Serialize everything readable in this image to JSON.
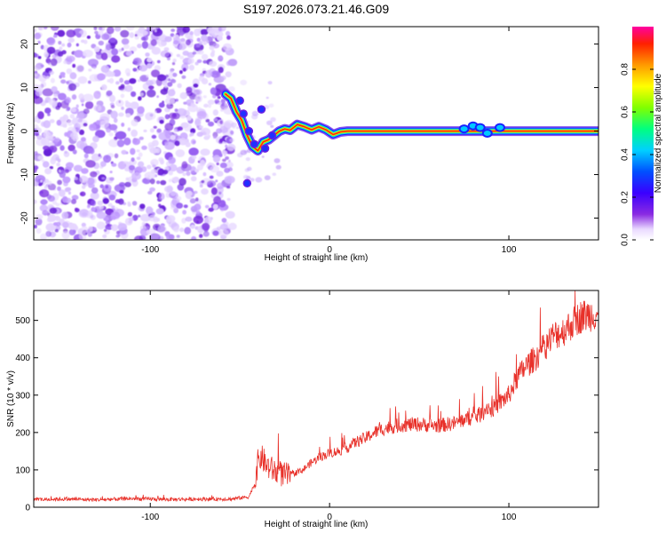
{
  "title": "S197.2026.073.21.46.G09",
  "chart_data": [
    {
      "type": "heatmap",
      "panel": "spectrogram",
      "xlabel": "Height of straight line (km)",
      "ylabel": "Frequency (Hz)",
      "xlim": [
        -165,
        150
      ],
      "ylim": [
        -25,
        24
      ],
      "xticks": [
        -100,
        0,
        100
      ],
      "yticks": [
        20,
        10,
        0,
        -10,
        -20
      ],
      "noise_region_x": [
        -165,
        -58
      ],
      "transition_region_x": [
        -58,
        -28
      ],
      "track": [
        {
          "x": -58,
          "y": 8.5
        },
        {
          "x": -55,
          "y": 7.5
        },
        {
          "x": -52,
          "y": 4.5
        },
        {
          "x": -49,
          "y": 2.5
        },
        {
          "x": -46,
          "y": -1
        },
        {
          "x": -43,
          "y": -3.5
        },
        {
          "x": -40,
          "y": -4.5
        },
        {
          "x": -37,
          "y": -2.5
        },
        {
          "x": -34,
          "y": -2
        },
        {
          "x": -31,
          "y": -1
        },
        {
          "x": -28,
          "y": 0
        },
        {
          "x": -25,
          "y": 0.5
        },
        {
          "x": -22,
          "y": 0.2
        },
        {
          "x": -18,
          "y": 1.5
        },
        {
          "x": -14,
          "y": 1
        },
        {
          "x": -10,
          "y": 0.3
        },
        {
          "x": -6,
          "y": 1
        },
        {
          "x": -2,
          "y": 0.3
        },
        {
          "x": 2,
          "y": -0.8
        },
        {
          "x": 6,
          "y": -0.2
        },
        {
          "x": 10,
          "y": 0
        },
        {
          "x": 150,
          "y": 0
        }
      ],
      "colorbar": {
        "label": "Normalized spectral amplitude",
        "ticks": [
          0.0,
          0.2,
          0.4,
          0.6,
          0.8
        ],
        "range": [
          0,
          1
        ]
      }
    },
    {
      "type": "line",
      "panel": "snr",
      "xlabel": "Height of straight line (km)",
      "ylabel": "SNR (10 * v/v)",
      "xlim": [
        -165,
        150
      ],
      "ylim": [
        0,
        580
      ],
      "xticks": [
        -100,
        0,
        100
      ],
      "yticks": [
        0,
        100,
        200,
        300,
        400,
        500
      ],
      "color": "#e8312a",
      "series": [
        {
          "name": "SNR",
          "x": [
            -165,
            -150,
            -130,
            -110,
            -90,
            -70,
            -55,
            -45,
            -42,
            -40,
            -38,
            -35,
            -30,
            -25,
            -20,
            -15,
            -10,
            -5,
            0,
            5,
            10,
            15,
            20,
            25,
            30,
            40,
            50,
            60,
            70,
            75,
            80,
            85,
            88,
            90,
            95,
            100,
            105,
            110,
            115,
            120,
            125,
            130,
            135,
            140,
            145,
            150
          ],
          "values": [
            20,
            22,
            20,
            23,
            21,
            22,
            22,
            28,
            60,
            120,
            135,
            110,
            95,
            85,
            90,
            100,
            120,
            135,
            145,
            150,
            160,
            175,
            185,
            200,
            210,
            220,
            222,
            218,
            225,
            235,
            240,
            250,
            270,
            260,
            280,
            300,
            350,
            380,
            400,
            430,
            460,
            470,
            490,
            510,
            515,
            520
          ]
        }
      ]
    }
  ]
}
